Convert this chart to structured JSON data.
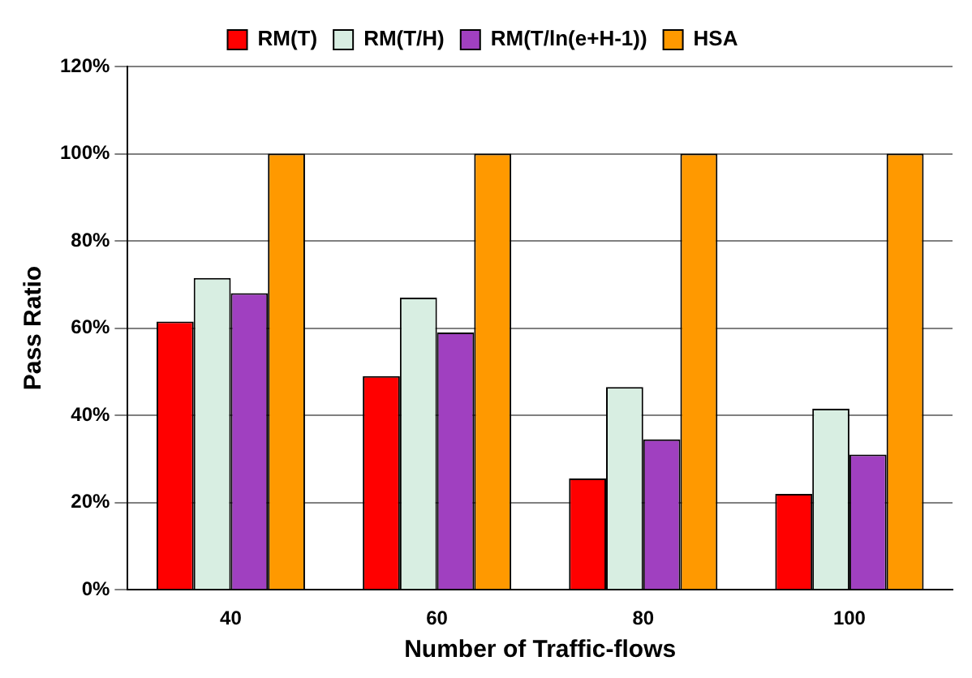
{
  "chart_data": {
    "type": "bar",
    "xlabel": "Number of Traffic-flows",
    "ylabel": "Pass Ratio",
    "categories": [
      "40",
      "60",
      "80",
      "100"
    ],
    "series": [
      {
        "name": "RM(T)",
        "color": "#ff0000",
        "values": [
          61.5,
          49,
          25.5,
          22
        ]
      },
      {
        "name": "RM(T/H)",
        "color": "#d8eee2",
        "values": [
          71.5,
          67,
          46.5,
          41.5
        ]
      },
      {
        "name": "RM(T/ln(e+H-1))",
        "color": "#a040c0",
        "values": [
          68,
          59,
          34.5,
          31
        ]
      },
      {
        "name": "HSA",
        "color": "#ff9900",
        "values": [
          100,
          100,
          100,
          100
        ]
      }
    ],
    "ylim": [
      0,
      120
    ],
    "yticks": [
      {
        "value": 0,
        "label": "0%"
      },
      {
        "value": 20,
        "label": "20%"
      },
      {
        "value": 40,
        "label": "40%"
      },
      {
        "value": 60,
        "label": "60%"
      },
      {
        "value": 80,
        "label": "80%"
      },
      {
        "value": 100,
        "label": "100%"
      },
      {
        "value": 120,
        "label": "120%"
      }
    ],
    "grid": "y",
    "legend": "top"
  }
}
